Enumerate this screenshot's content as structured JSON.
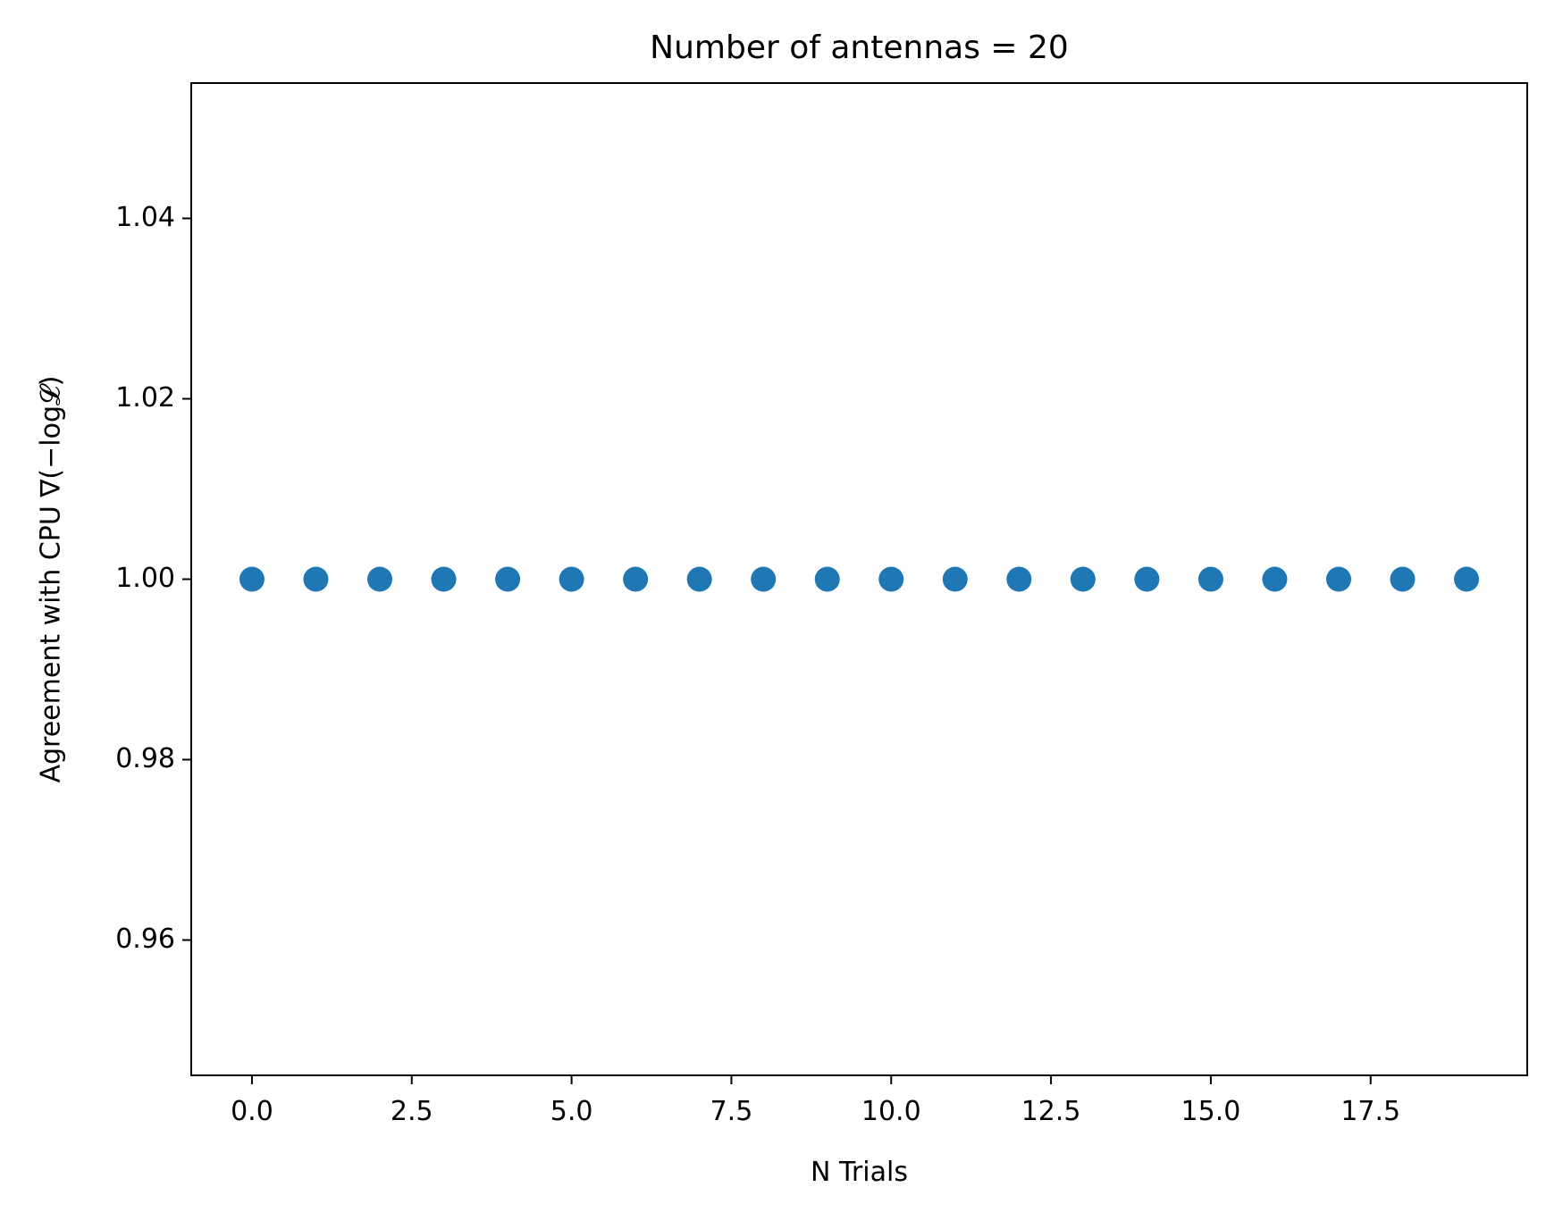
{
  "chart_data": {
    "type": "scatter",
    "title": "Number of antennas = 20",
    "xlabel": "N Trials",
    "ylabel": "Agreement with CPU ∇(−log𝓛)",
    "x": [
      0,
      1,
      2,
      3,
      4,
      5,
      6,
      7,
      8,
      9,
      10,
      11,
      12,
      13,
      14,
      15,
      16,
      17,
      18,
      19
    ],
    "y": [
      1.0,
      1.0,
      1.0,
      1.0,
      1.0,
      1.0,
      1.0,
      1.0,
      1.0,
      1.0,
      1.0,
      1.0,
      1.0,
      1.0,
      1.0,
      1.0,
      1.0,
      1.0,
      1.0,
      1.0
    ],
    "xlim": [
      -0.95,
      19.95
    ],
    "ylim": [
      0.945,
      1.055
    ],
    "xticks": [
      0.0,
      2.5,
      5.0,
      7.5,
      10.0,
      12.5,
      15.0,
      17.5
    ],
    "xtick_labels": [
      "0.0",
      "2.5",
      "5.0",
      "7.5",
      "10.0",
      "12.5",
      "15.0",
      "17.5"
    ],
    "yticks": [
      0.96,
      0.98,
      1.0,
      1.02,
      1.04
    ],
    "ytick_labels": [
      "0.96",
      "0.98",
      "1.00",
      "1.02",
      "1.04"
    ],
    "grid": false,
    "marker_color": "#1f77b4"
  }
}
